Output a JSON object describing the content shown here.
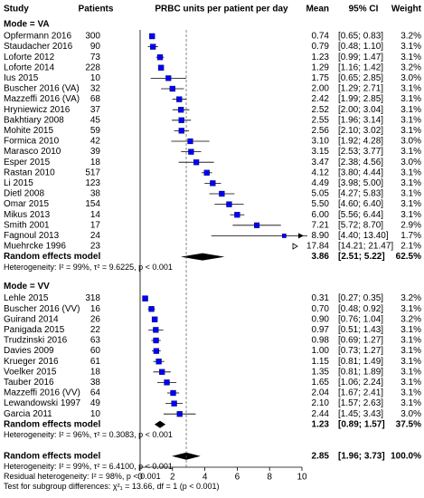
{
  "chart_data": {
    "type": "forest",
    "columns": {
      "study": "Study",
      "patients": "Patients",
      "effect": "PRBC units per patient per day",
      "mean": "Mean",
      "ci": "95% CI",
      "weight": "Weight"
    },
    "xlim": [
      0,
      10
    ],
    "xticks": [
      0,
      2,
      4,
      6,
      8,
      10
    ],
    "color": "#0000ff",
    "groups": [
      {
        "label": "Mode = VA",
        "studies": [
          {
            "name": "Opfermann 2016",
            "patients": 300,
            "mean": 0.74,
            "ci": [
              0.65,
              0.83
            ],
            "weight": 3.2,
            "labels": {
              "mean": "0.74",
              "ci": "[0.65; 0.83]",
              "weight": "3.2%"
            }
          },
          {
            "name": "Staudacher 2016",
            "patients": 90,
            "mean": 0.79,
            "ci": [
              0.48,
              1.1
            ],
            "weight": 3.1,
            "labels": {
              "mean": "0.79",
              "ci": "[0.48; 1.10]",
              "weight": "3.1%"
            }
          },
          {
            "name": "Loforte 2012",
            "patients": 73,
            "mean": 1.23,
            "ci": [
              0.99,
              1.47
            ],
            "weight": 3.1,
            "labels": {
              "mean": "1.23",
              "ci": "[0.99; 1.47]",
              "weight": "3.1%"
            }
          },
          {
            "name": "Loforte 2014",
            "patients": 228,
            "mean": 1.29,
            "ci": [
              1.16,
              1.42
            ],
            "weight": 3.2,
            "labels": {
              "mean": "1.29",
              "ci": "[1.16; 1.42]",
              "weight": "3.2%"
            }
          },
          {
            "name": "Ius 2015",
            "patients": 10,
            "mean": 1.75,
            "ci": [
              0.65,
              2.85
            ],
            "weight": 3.0,
            "labels": {
              "mean": "1.75",
              "ci": "[0.65; 2.85]",
              "weight": "3.0%"
            }
          },
          {
            "name": "Buscher 2016 (VA)",
            "patients": 32,
            "mean": 2.0,
            "ci": [
              1.29,
              2.71
            ],
            "weight": 3.1,
            "labels": {
              "mean": "2.00",
              "ci": "[1.29; 2.71]",
              "weight": "3.1%"
            }
          },
          {
            "name": "Mazzeffi 2016 (VA)",
            "patients": 68,
            "mean": 2.42,
            "ci": [
              1.99,
              2.85
            ],
            "weight": 3.1,
            "labels": {
              "mean": "2.42",
              "ci": "[1.99; 2.85]",
              "weight": "3.1%"
            }
          },
          {
            "name": "Hryniewicz 2016",
            "patients": 37,
            "mean": 2.52,
            "ci": [
              2.0,
              3.04
            ],
            "weight": 3.1,
            "labels": {
              "mean": "2.52",
              "ci": "[2.00; 3.04]",
              "weight": "3.1%"
            }
          },
          {
            "name": "Bakhtiary 2008",
            "patients": 45,
            "mean": 2.55,
            "ci": [
              1.96,
              3.14
            ],
            "weight": 3.1,
            "labels": {
              "mean": "2.55",
              "ci": "[1.96; 3.14]",
              "weight": "3.1%"
            }
          },
          {
            "name": "Mohite 2015",
            "patients": 59,
            "mean": 2.56,
            "ci": [
              2.1,
              3.02
            ],
            "weight": 3.1,
            "labels": {
              "mean": "2.56",
              "ci": "[2.10; 3.02]",
              "weight": "3.1%"
            }
          },
          {
            "name": "Formica 2010",
            "patients": 42,
            "mean": 3.1,
            "ci": [
              1.92,
              4.28
            ],
            "weight": 3.0,
            "labels": {
              "mean": "3.10",
              "ci": "[1.92; 4.28]",
              "weight": "3.0%"
            }
          },
          {
            "name": "Marasco 2010",
            "patients": 39,
            "mean": 3.15,
            "ci": [
              2.53,
              3.77
            ],
            "weight": 3.1,
            "labels": {
              "mean": "3.15",
              "ci": "[2.53; 3.77]",
              "weight": "3.1%"
            }
          },
          {
            "name": "Esper 2015",
            "patients": 18,
            "mean": 3.47,
            "ci": [
              2.38,
              4.56
            ],
            "weight": 3.0,
            "labels": {
              "mean": "3.47",
              "ci": "[2.38; 4.56]",
              "weight": "3.0%"
            }
          },
          {
            "name": "Rastan 2010",
            "patients": 517,
            "mean": 4.12,
            "ci": [
              3.8,
              4.44
            ],
            "weight": 3.1,
            "labels": {
              "mean": "4.12",
              "ci": "[3.80; 4.44]",
              "weight": "3.1%"
            }
          },
          {
            "name": "Li 2015",
            "patients": 123,
            "mean": 4.49,
            "ci": [
              3.98,
              5.0
            ],
            "weight": 3.1,
            "labels": {
              "mean": "4.49",
              "ci": "[3.98; 5.00]",
              "weight": "3.1%"
            }
          },
          {
            "name": "Dietl 2008",
            "patients": 38,
            "mean": 5.05,
            "ci": [
              4.27,
              5.83
            ],
            "weight": 3.1,
            "labels": {
              "mean": "5.05",
              "ci": "[4.27; 5.83]",
              "weight": "3.1%"
            }
          },
          {
            "name": "Omar 2015",
            "patients": 154,
            "mean": 5.5,
            "ci": [
              4.6,
              6.4
            ],
            "weight": 3.1,
            "labels": {
              "mean": "5.50",
              "ci": "[4.60; 6.40]",
              "weight": "3.1%"
            }
          },
          {
            "name": "Mikus 2013",
            "patients": 14,
            "mean": 6.0,
            "ci": [
              5.56,
              6.44
            ],
            "weight": 3.1,
            "labels": {
              "mean": "6.00",
              "ci": "[5.56; 6.44]",
              "weight": "3.1%"
            }
          },
          {
            "name": "Smith 2001",
            "patients": 17,
            "mean": 7.21,
            "ci": [
              5.72,
              8.7
            ],
            "weight": 2.9,
            "labels": {
              "mean": "7.21",
              "ci": "[5.72; 8.70]",
              "weight": "2.9%"
            }
          },
          {
            "name": "Fagnoul 2013",
            "patients": 24,
            "mean": 8.9,
            "ci": [
              4.4,
              13.4
            ],
            "weight": 1.7,
            "labels": {
              "mean": "8.90",
              "ci": "[4.40; 13.40]",
              "weight": "1.7%"
            }
          },
          {
            "name": "Muehrcke 1996",
            "patients": 23,
            "mean": 17.84,
            "ci": [
              14.21,
              21.47
            ],
            "weight": 2.1,
            "labels": {
              "mean": "17.84",
              "ci": "[14.21; 21.47]",
              "weight": "2.1%"
            }
          }
        ],
        "summary": {
          "name": "Random effects model",
          "mean": 3.86,
          "ci": [
            2.51,
            5.22
          ],
          "weight": 62.5,
          "labels": {
            "mean": "3.86",
            "ci": "[2.51; 5.22]",
            "weight": "62.5%"
          }
        },
        "heterogeneity": [
          "Heterogeneity: I² = 99%, τ² = 9.6225, p < 0.001"
        ]
      },
      {
        "label": "Mode = VV",
        "studies": [
          {
            "name": "Lehle 2015",
            "patients": 318,
            "mean": 0.31,
            "ci": [
              0.27,
              0.35
            ],
            "weight": 3.2,
            "labels": {
              "mean": "0.31",
              "ci": "[0.27; 0.35]",
              "weight": "3.2%"
            }
          },
          {
            "name": "Buscher 2016 (VV)",
            "patients": 16,
            "mean": 0.7,
            "ci": [
              0.48,
              0.92
            ],
            "weight": 3.1,
            "labels": {
              "mean": "0.70",
              "ci": "[0.48; 0.92]",
              "weight": "3.1%"
            }
          },
          {
            "name": "Guirand 2014",
            "patients": 26,
            "mean": 0.9,
            "ci": [
              0.76,
              1.04
            ],
            "weight": 3.2,
            "labels": {
              "mean": "0.90",
              "ci": "[0.76; 1.04]",
              "weight": "3.2%"
            }
          },
          {
            "name": "Panigada 2015",
            "patients": 22,
            "mean": 0.97,
            "ci": [
              0.51,
              1.43
            ],
            "weight": 3.1,
            "labels": {
              "mean": "0.97",
              "ci": "[0.51; 1.43]",
              "weight": "3.1%"
            }
          },
          {
            "name": "Trudzinski 2016",
            "patients": 63,
            "mean": 0.98,
            "ci": [
              0.69,
              1.27
            ],
            "weight": 3.1,
            "labels": {
              "mean": "0.98",
              "ci": "[0.69; 1.27]",
              "weight": "3.1%"
            }
          },
          {
            "name": "Davies 2009",
            "patients": 60,
            "mean": 1.0,
            "ci": [
              0.73,
              1.27
            ],
            "weight": 3.1,
            "labels": {
              "mean": "1.00",
              "ci": "[0.73; 1.27]",
              "weight": "3.1%"
            }
          },
          {
            "name": "Krueger 2016",
            "patients": 61,
            "mean": 1.15,
            "ci": [
              0.81,
              1.49
            ],
            "weight": 3.1,
            "labels": {
              "mean": "1.15",
              "ci": "[0.81; 1.49]",
              "weight": "3.1%"
            }
          },
          {
            "name": "Voelker 2015",
            "patients": 18,
            "mean": 1.35,
            "ci": [
              0.81,
              1.89
            ],
            "weight": 3.1,
            "labels": {
              "mean": "1.35",
              "ci": "[0.81; 1.89]",
              "weight": "3.1%"
            }
          },
          {
            "name": "Tauber 2016",
            "patients": 38,
            "mean": 1.65,
            "ci": [
              1.06,
              2.24
            ],
            "weight": 3.1,
            "labels": {
              "mean": "1.65",
              "ci": "[1.06; 2.24]",
              "weight": "3.1%"
            }
          },
          {
            "name": "Mazzeffi 2016 (VV)",
            "patients": 64,
            "mean": 2.04,
            "ci": [
              1.67,
              2.41
            ],
            "weight": 3.1,
            "labels": {
              "mean": "2.04",
              "ci": "[1.67; 2.41]",
              "weight": "3.1%"
            }
          },
          {
            "name": "Lewandowski 1997",
            "patients": 49,
            "mean": 2.1,
            "ci": [
              1.57,
              2.63
            ],
            "weight": 3.1,
            "labels": {
              "mean": "2.10",
              "ci": "[1.57; 2.63]",
              "weight": "3.1%"
            }
          },
          {
            "name": "Garcia 2011",
            "patients": 10,
            "mean": 2.44,
            "ci": [
              1.45,
              3.43
            ],
            "weight": 3.0,
            "labels": {
              "mean": "2.44",
              "ci": "[1.45; 3.43]",
              "weight": "3.0%"
            }
          }
        ],
        "summary": {
          "name": "Random effects model",
          "mean": 1.23,
          "ci": [
            0.89,
            1.57
          ],
          "weight": 37.5,
          "labels": {
            "mean": "1.23",
            "ci": "[0.89; 1.57]",
            "weight": "37.5%"
          }
        },
        "heterogeneity": [
          "Heterogeneity: I² = 96%, τ² = 0.3083, p < 0.001"
        ]
      }
    ],
    "overall": {
      "name": "Random effects model",
      "mean": 2.85,
      "ci": [
        1.96,
        3.73
      ],
      "weight": 100.0,
      "labels": {
        "mean": "2.85",
        "ci": "[1.96; 3.73]",
        "weight": "100.0%"
      },
      "heterogeneity": [
        "Heterogeneity: I² = 99%, τ² = 6.4100, p < 0.001",
        "Residual heterogeneity: I² = 98%, p < 0.001",
        "Test for subgroup differences: χ²₁ = 13.66, df = 1 (p < 0.001)"
      ]
    }
  }
}
